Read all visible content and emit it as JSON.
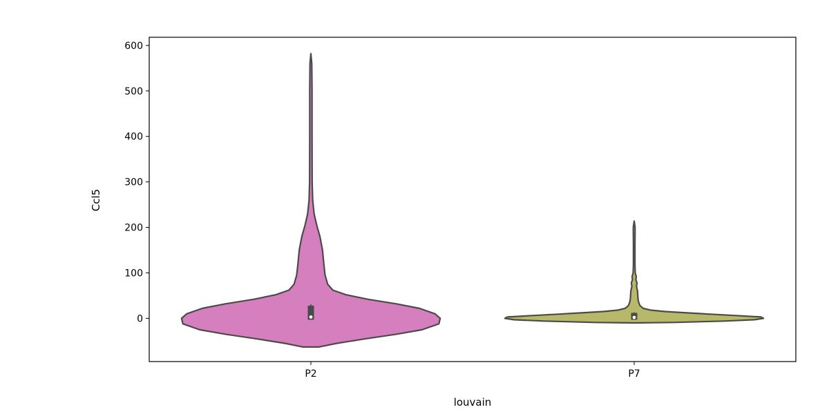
{
  "chart_data": {
    "type": "violin",
    "xlabel": "louvain",
    "ylabel": "Ccl5",
    "ylim": [
      -95,
      618
    ],
    "yticks": [
      0,
      100,
      200,
      300,
      400,
      500,
      600
    ],
    "grid": false,
    "legend": "none",
    "categories": [
      "P2",
      "P7"
    ],
    "series": [
      {
        "category": "P2",
        "color": "#d67fbf",
        "min": -63,
        "max": 582,
        "box": {
          "q1": -3,
          "median": 3,
          "q3": 28
        },
        "width_scale": 1.0,
        "density": [
          [
            -63,
            0.06
          ],
          [
            -55,
            0.2
          ],
          [
            -45,
            0.42
          ],
          [
            -35,
            0.66
          ],
          [
            -25,
            0.86
          ],
          [
            -12,
            0.99
          ],
          [
            0,
            1.0
          ],
          [
            10,
            0.96
          ],
          [
            22,
            0.84
          ],
          [
            32,
            0.66
          ],
          [
            42,
            0.44
          ],
          [
            52,
            0.27
          ],
          [
            62,
            0.17
          ],
          [
            75,
            0.13
          ],
          [
            95,
            0.11
          ],
          [
            120,
            0.1
          ],
          [
            150,
            0.09
          ],
          [
            180,
            0.07
          ],
          [
            205,
            0.045
          ],
          [
            230,
            0.025
          ],
          [
            260,
            0.014
          ],
          [
            300,
            0.01
          ],
          [
            400,
            0.009
          ],
          [
            500,
            0.009
          ],
          [
            560,
            0.007
          ],
          [
            582,
            0.0
          ]
        ]
      },
      {
        "category": "P7",
        "color": "#b8b86a",
        "min": -10,
        "max": 214,
        "box": {
          "q1": -3,
          "median": 2,
          "q3": 12
        },
        "width_scale": 1.0,
        "density": [
          [
            -10,
            0.0
          ],
          [
            -9,
            0.3
          ],
          [
            -6,
            0.7
          ],
          [
            -3,
            0.93
          ],
          [
            0,
            1.0
          ],
          [
            3,
            0.98
          ],
          [
            6,
            0.8
          ],
          [
            9,
            0.6
          ],
          [
            12,
            0.42
          ],
          [
            15,
            0.24
          ],
          [
            18,
            0.13
          ],
          [
            22,
            0.07
          ],
          [
            28,
            0.045
          ],
          [
            35,
            0.035
          ],
          [
            42,
            0.03
          ],
          [
            50,
            0.028
          ],
          [
            60,
            0.026
          ],
          [
            70,
            0.018
          ],
          [
            78,
            0.022
          ],
          [
            85,
            0.013
          ],
          [
            92,
            0.016
          ],
          [
            100,
            0.008
          ],
          [
            120,
            0.006
          ],
          [
            160,
            0.006
          ],
          [
            200,
            0.007
          ],
          [
            214,
            0.0
          ]
        ]
      }
    ]
  }
}
